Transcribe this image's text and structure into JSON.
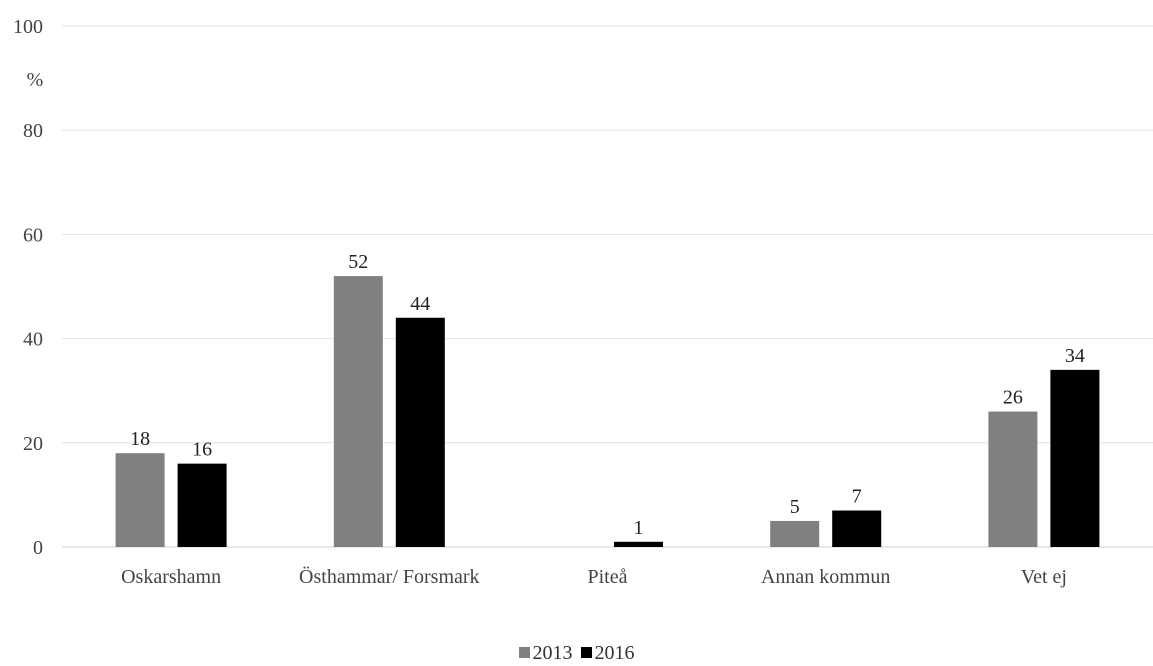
{
  "chart_data": {
    "type": "bar",
    "title": "",
    "xlabel": "",
    "ylabel": "%",
    "ylim": [
      0,
      100
    ],
    "yticks": [
      0,
      20,
      40,
      60,
      80,
      100
    ],
    "grid": true,
    "legend_position": "bottom",
    "categories": [
      "Oskarshamn",
      "Östhammar/ Forsmark",
      "Piteå",
      "Annan kommun",
      "Vet ej"
    ],
    "series": [
      {
        "name": "2013",
        "color": "#808080",
        "values": [
          18,
          52,
          null,
          5,
          26
        ]
      },
      {
        "name": "2016",
        "color": "#000000",
        "values": [
          16,
          44,
          1,
          7,
          34
        ]
      }
    ]
  }
}
